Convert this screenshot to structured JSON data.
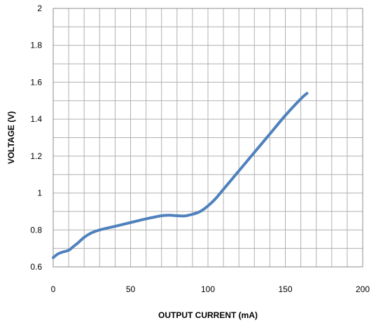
{
  "chart_data": {
    "type": "line",
    "title": "",
    "xlabel": "OUTPUT CURRENT (mA)",
    "ylabel": "VOLTAGE  (V)",
    "xlim": [
      0,
      200
    ],
    "ylim": [
      0.6,
      2
    ],
    "x_ticks": [
      0,
      50,
      100,
      150,
      200
    ],
    "y_ticks": [
      0.6,
      0.8,
      1,
      1.2,
      1.4,
      1.6,
      1.8,
      2
    ],
    "x_tick_labels": [
      "0",
      "50",
      "100",
      "150",
      "200"
    ],
    "y_tick_labels": [
      "0.6",
      "0.8",
      "1",
      "1.2",
      "1.4",
      "1.6",
      "1.8",
      "2"
    ],
    "x_minor_step": 10,
    "y_minor_step": 0.1,
    "grid": true,
    "legend": "none",
    "series": [
      {
        "color": "#4f81bd",
        "x": [
          0,
          3,
          6,
          10,
          13,
          16,
          20,
          25,
          30,
          40,
          50,
          60,
          70,
          75,
          80,
          85,
          90,
          95,
          100,
          105,
          110,
          120,
          130,
          140,
          150,
          160,
          164
        ],
        "y": [
          0.65,
          0.67,
          0.68,
          0.69,
          0.71,
          0.73,
          0.76,
          0.785,
          0.8,
          0.82,
          0.84,
          0.86,
          0.877,
          0.88,
          0.877,
          0.876,
          0.885,
          0.9,
          0.93,
          0.97,
          1.02,
          1.12,
          1.22,
          1.32,
          1.42,
          1.51,
          1.54
        ]
      }
    ]
  }
}
